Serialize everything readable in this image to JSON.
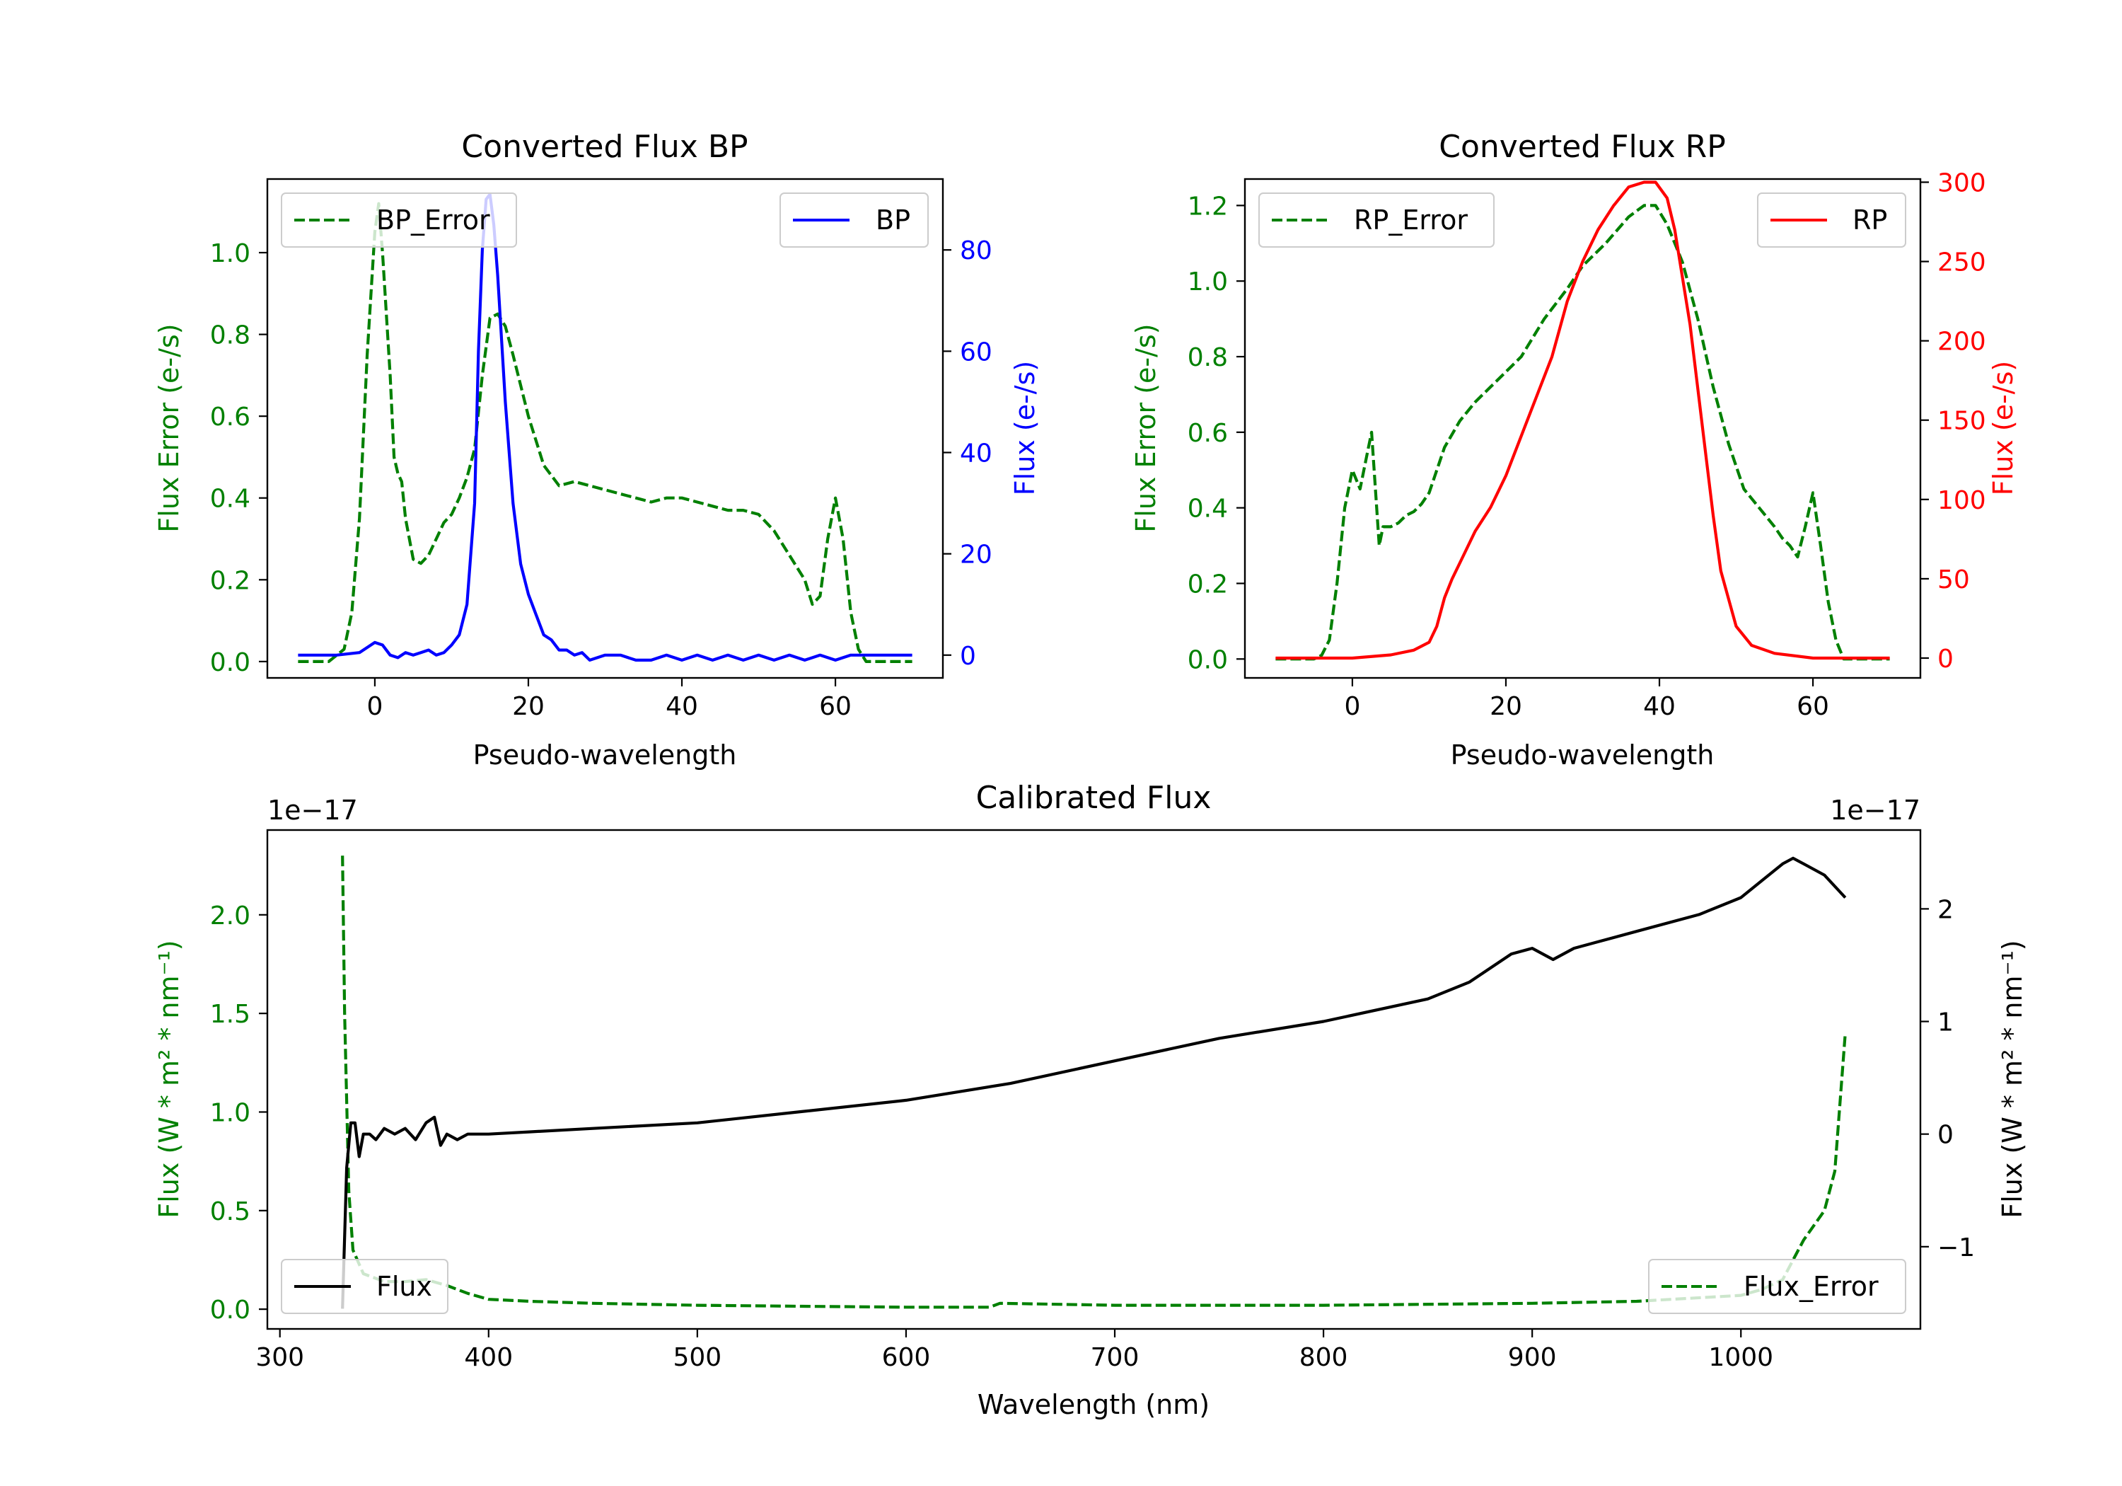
{
  "chart_data": [
    {
      "type": "line",
      "title": "Converted Flux BP",
      "xlabel": "Pseudo-wavelength",
      "xlim": [
        -14,
        74
      ],
      "xticks": [
        0,
        20,
        40,
        60
      ],
      "left_axis": {
        "label": "Flux Error (e-/s)",
        "color": "#008000",
        "ylim": [
          -0.04,
          1.18
        ],
        "ticks": [
          0.0,
          0.2,
          0.4,
          0.6,
          0.8,
          1.0
        ],
        "tick_labels": [
          "0.0",
          "0.2",
          "0.4",
          "0.6",
          "0.8",
          "1.0"
        ]
      },
      "right_axis": {
        "label": "Flux (e-/s)",
        "color": "#0000ff",
        "ylim": [
          -4.5,
          94
        ],
        "ticks": [
          0,
          20,
          40,
          60,
          80
        ],
        "tick_labels": [
          "0",
          "20",
          "40",
          "60",
          "80"
        ]
      },
      "series": [
        {
          "name": "BP_Error",
          "axis": "left",
          "color": "#008000",
          "style": "dashed",
          "x": [
            -10,
            -6,
            -4,
            -3,
            -2,
            -1,
            0,
            0.5,
            1,
            2,
            2.5,
            3,
            3.5,
            4,
            5,
            6,
            7,
            8,
            9,
            10,
            11,
            12,
            13,
            14,
            15,
            16,
            17,
            18,
            20,
            22,
            24,
            26,
            28,
            30,
            32,
            34,
            36,
            38,
            40,
            42,
            44,
            46,
            48,
            50,
            52,
            54,
            56,
            57,
            58,
            59,
            60,
            61,
            62,
            63,
            64,
            66,
            70
          ],
          "y": [
            0,
            0,
            0.03,
            0.12,
            0.35,
            0.75,
            1.05,
            1.12,
            1.0,
            0.7,
            0.5,
            0.46,
            0.44,
            0.35,
            0.25,
            0.24,
            0.26,
            0.3,
            0.34,
            0.36,
            0.4,
            0.45,
            0.52,
            0.7,
            0.84,
            0.85,
            0.82,
            0.75,
            0.6,
            0.48,
            0.43,
            0.44,
            0.43,
            0.42,
            0.41,
            0.4,
            0.39,
            0.4,
            0.4,
            0.39,
            0.38,
            0.37,
            0.37,
            0.36,
            0.32,
            0.26,
            0.2,
            0.14,
            0.16,
            0.3,
            0.4,
            0.3,
            0.12,
            0.03,
            0,
            0,
            0
          ]
        },
        {
          "name": "BP",
          "axis": "right",
          "color": "#0000ff",
          "style": "solid",
          "x": [
            -10,
            -5,
            -2,
            0,
            1,
            2,
            3,
            4,
            5,
            6,
            7,
            8,
            9,
            10,
            11,
            12,
            13,
            13.5,
            14,
            14.5,
            15,
            15.5,
            16,
            17,
            18,
            19,
            20,
            21,
            22,
            23,
            24,
            25,
            26,
            27,
            28,
            30,
            32,
            34,
            36,
            38,
            40,
            42,
            44,
            46,
            48,
            50,
            52,
            54,
            56,
            58,
            60,
            62,
            65,
            70
          ],
          "y": [
            0,
            0,
            0.5,
            2.5,
            2,
            0,
            -0.5,
            0.5,
            0,
            0.5,
            1,
            0,
            0.5,
            2,
            4,
            10,
            30,
            60,
            80,
            90,
            91,
            85,
            75,
            50,
            30,
            18,
            12,
            8,
            4,
            3,
            1,
            1,
            0,
            0.5,
            -1,
            0,
            0,
            -1,
            -1,
            0,
            -1,
            0,
            -1,
            0,
            -1,
            0,
            -1,
            0,
            -1,
            0,
            -1,
            0,
            0,
            0
          ]
        }
      ],
      "legend": [
        {
          "label": "BP_Error",
          "position": "upper-left"
        },
        {
          "label": "BP",
          "position": "upper-right"
        }
      ]
    },
    {
      "type": "line",
      "title": "Converted Flux RP",
      "xlabel": "Pseudo-wavelength",
      "xlim": [
        -14,
        74
      ],
      "xticks": [
        0,
        20,
        40,
        60
      ],
      "left_axis": {
        "label": "Flux Error (e-/s)",
        "color": "#008000",
        "ylim": [
          -0.05,
          1.27
        ],
        "ticks": [
          0.0,
          0.2,
          0.4,
          0.6,
          0.8,
          1.0,
          1.2
        ],
        "tick_labels": [
          "0.0",
          "0.2",
          "0.4",
          "0.6",
          "0.8",
          "1.0",
          "1.2"
        ]
      },
      "right_axis": {
        "label": "Flux (e-/s)",
        "color": "#ff0000",
        "ylim": [
          -12.5,
          302
        ],
        "ticks": [
          0,
          50,
          100,
          150,
          200,
          250,
          300
        ],
        "tick_labels": [
          "0",
          "50",
          "100",
          "150",
          "200",
          "250",
          "300"
        ]
      },
      "series": [
        {
          "name": "RP_Error",
          "axis": "left",
          "color": "#008000",
          "style": "dashed",
          "x": [
            -10,
            -5,
            -4,
            -3,
            -2,
            -1,
            0,
            1,
            2,
            2.5,
            3,
            3.5,
            4,
            5,
            6,
            7,
            8,
            9,
            10,
            12,
            14,
            16,
            18,
            20,
            22,
            25,
            28,
            30,
            33,
            36,
            38,
            39.5,
            41,
            43,
            45,
            47,
            49,
            51,
            53,
            55,
            56,
            57,
            58,
            59,
            60,
            61,
            62,
            63,
            64,
            66,
            70
          ],
          "y": [
            0,
            0,
            0.01,
            0.05,
            0.2,
            0.4,
            0.5,
            0.45,
            0.55,
            0.6,
            0.45,
            0.3,
            0.35,
            0.35,
            0.36,
            0.38,
            0.39,
            0.41,
            0.44,
            0.56,
            0.63,
            0.68,
            0.72,
            0.76,
            0.8,
            0.9,
            0.98,
            1.04,
            1.1,
            1.17,
            1.2,
            1.2,
            1.15,
            1.05,
            0.9,
            0.72,
            0.57,
            0.45,
            0.4,
            0.35,
            0.32,
            0.3,
            0.27,
            0.35,
            0.44,
            0.3,
            0.15,
            0.05,
            0,
            0,
            0
          ]
        },
        {
          "name": "RP",
          "axis": "right",
          "color": "#ff0000",
          "style": "solid",
          "x": [
            -10,
            0,
            5,
            8,
            10,
            11,
            12,
            13,
            14,
            16,
            18,
            20,
            22,
            24,
            26,
            28,
            30,
            32,
            34,
            36,
            38,
            39.5,
            41,
            42,
            44,
            46,
            47,
            48,
            50,
            52,
            55,
            60,
            65,
            70
          ],
          "y": [
            0,
            0,
            2,
            5,
            10,
            20,
            38,
            50,
            60,
            80,
            95,
            115,
            140,
            165,
            190,
            225,
            250,
            270,
            285,
            297,
            300,
            300,
            290,
            270,
            210,
            130,
            90,
            55,
            20,
            8,
            3,
            0,
            0,
            0
          ]
        }
      ],
      "legend": [
        {
          "label": "RP_Error",
          "position": "upper-left"
        },
        {
          "label": "RP",
          "position": "upper-right"
        }
      ]
    },
    {
      "type": "line",
      "title": "Calibrated Flux",
      "xlabel": "Wavelength (nm)",
      "xlim": [
        294,
        1086
      ],
      "xticks": [
        300,
        400,
        500,
        600,
        700,
        800,
        900,
        1000
      ],
      "left_axis": {
        "label": "Flux (W * m² * nm⁻¹)",
        "color": "#008000",
        "ylim": [
          -0.1,
          2.43
        ],
        "multiplier": "1e−17",
        "ticks": [
          0.0,
          0.5,
          1.0,
          1.5,
          2.0
        ],
        "tick_labels": [
          "0.0",
          "0.5",
          "1.0",
          "1.5",
          "2.0"
        ]
      },
      "right_axis": {
        "label": "Flux (W * m² * nm⁻¹)",
        "color": "#000000",
        "ylim": [
          -1.73,
          2.7
        ],
        "multiplier": "1e−17",
        "ticks": [
          -1,
          0,
          1,
          2
        ],
        "tick_labels": [
          "−1",
          "0",
          "1",
          "2"
        ]
      },
      "series": [
        {
          "name": "Flux_Error",
          "axis": "left",
          "color": "#008000",
          "style": "dashed",
          "x": [
            330,
            331,
            333,
            335,
            340,
            350,
            360,
            370,
            380,
            390,
            400,
            420,
            450,
            500,
            550,
            600,
            640,
            645,
            700,
            800,
            900,
            950,
            1000,
            1010,
            1020,
            1030,
            1040,
            1045,
            1050
          ],
          "y": [
            2.3,
            1.5,
            0.6,
            0.3,
            0.18,
            0.14,
            0.14,
            0.15,
            0.12,
            0.08,
            0.05,
            0.04,
            0.03,
            0.02,
            0.015,
            0.01,
            0.01,
            0.03,
            0.02,
            0.02,
            0.03,
            0.04,
            0.07,
            0.1,
            0.15,
            0.35,
            0.5,
            0.7,
            1.4
          ]
        },
        {
          "name": "Flux",
          "axis": "right",
          "color": "#000000",
          "style": "solid",
          "x": [
            330,
            332,
            334,
            336,
            338,
            340,
            343,
            346,
            350,
            355,
            360,
            365,
            370,
            374,
            377,
            380,
            385,
            390,
            400,
            420,
            450,
            500,
            550,
            600,
            650,
            700,
            750,
            800,
            850,
            870,
            890,
            900,
            910,
            920,
            930,
            950,
            980,
            1000,
            1010,
            1020,
            1025,
            1030,
            1040,
            1050
          ],
          "y": [
            -1.55,
            -0.3,
            0.1,
            0.1,
            -0.2,
            0.0,
            0.0,
            -0.05,
            0.05,
            0.0,
            0.05,
            -0.05,
            0.1,
            0.15,
            -0.1,
            0.0,
            -0.05,
            0.0,
            0.0,
            0.02,
            0.05,
            0.1,
            0.2,
            0.3,
            0.45,
            0.65,
            0.85,
            1.0,
            1.2,
            1.35,
            1.6,
            1.65,
            1.55,
            1.65,
            1.7,
            1.8,
            1.95,
            2.1,
            2.25,
            2.4,
            2.45,
            2.4,
            2.3,
            2.1
          ]
        }
      ],
      "legend": [
        {
          "label": "Flux",
          "position": "lower-left"
        },
        {
          "label": "Flux_Error",
          "position": "lower-right"
        }
      ]
    }
  ]
}
